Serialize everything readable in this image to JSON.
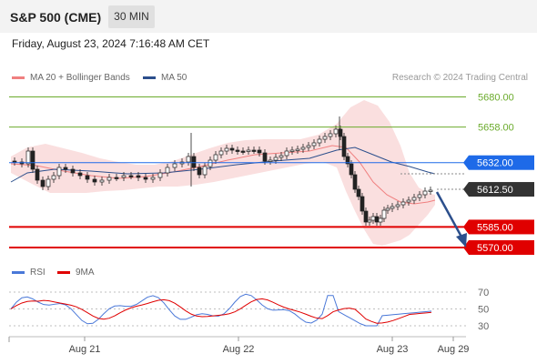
{
  "header": {
    "title": "S&P 500 (CME)",
    "timeframe": "30 MIN"
  },
  "datetime": "Friday, August 23, 2024 7:16:48 AM CET",
  "legend": {
    "ma20_label": "MA 20 + Bollinger Bands",
    "ma50_label": "MA 50",
    "ma20_color": "#f08080",
    "ma50_color": "#2c4f8c"
  },
  "credit": "Research © 2024 Trading Central",
  "chart_data": {
    "type": "candlestick",
    "price_levels": [
      {
        "label": "5680.00",
        "value": 5680,
        "color": "#6bab2c",
        "style": "resistance"
      },
      {
        "label": "5658.00",
        "value": 5658,
        "color": "#6bab2c",
        "style": "resistance"
      },
      {
        "label": "5632.00",
        "value": 5632,
        "color": "#1e6ae8",
        "style": "pivot"
      },
      {
        "label": "5612.50",
        "value": 5612.5,
        "color": "#333333",
        "style": "last"
      },
      {
        "label": "5585.00",
        "value": 5585,
        "color": "#e00000",
        "style": "support"
      },
      {
        "label": "5570.00",
        "value": 5570,
        "color": "#e00000",
        "style": "support"
      }
    ],
    "x_labels": [
      "Aug 21",
      "Aug 22",
      "Aug 23",
      "Aug 29"
    ],
    "rsi": {
      "legend_rsi": "RSI",
      "legend_ma": "9MA",
      "ticks": [
        "70",
        "50",
        "30"
      ],
      "rsi_color": "#4a78d8",
      "ma_color": "#e00000"
    }
  }
}
